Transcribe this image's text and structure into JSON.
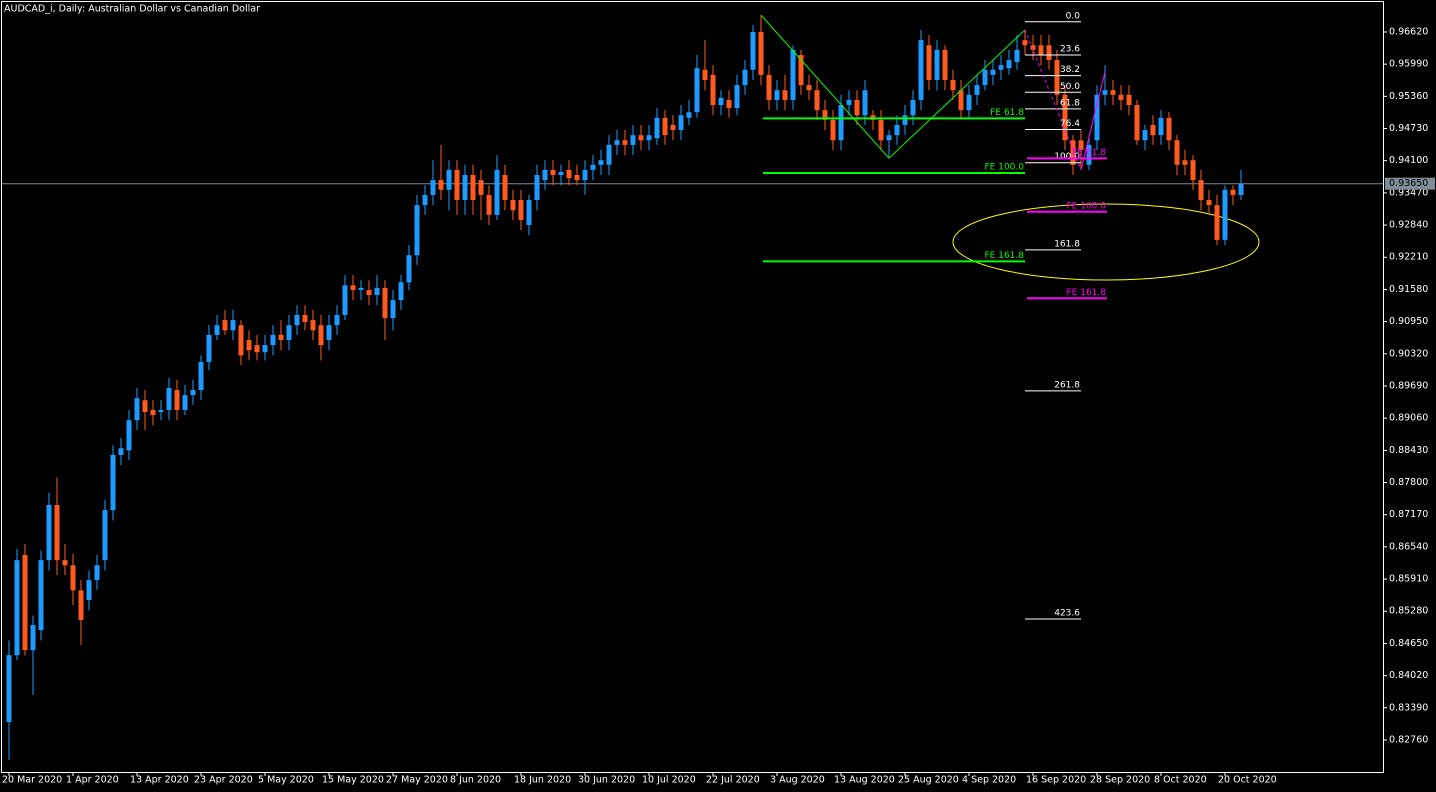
{
  "chart_data": {
    "type": "candlestick",
    "title": "AUDCAD_i, Daily:  Australian Dollar vs Canadian  Dollar",
    "up_color": "#1e9bff",
    "down_color": "#ff5a1f",
    "categories": [
      "20 Mar 2020",
      null,
      null,
      null,
      null,
      null,
      null,
      null,
      "1 Apr 2020",
      null,
      null,
      null,
      null,
      null,
      null,
      null,
      "13 Apr 2020",
      null,
      null,
      null,
      null,
      null,
      null,
      null,
      "23 Apr 2020",
      null,
      null,
      null,
      null,
      null,
      null,
      null,
      "5 May 2020",
      null,
      null,
      null,
      null,
      null,
      null,
      null,
      "15 May 2020",
      null,
      null,
      null,
      null,
      null,
      null,
      null,
      "27 May 2020",
      null,
      null,
      null,
      null,
      null,
      null,
      null,
      "8 Jun 2020",
      null,
      null,
      null,
      null,
      null,
      null,
      null,
      "18 Jun 2020",
      null,
      null,
      null,
      null,
      null,
      null,
      null,
      "30 Jun 2020",
      null,
      null,
      null,
      null,
      null,
      null,
      null,
      "10 Jul 2020",
      null,
      null,
      null,
      null,
      null,
      null,
      null,
      "22 Jul 2020",
      null,
      null,
      null,
      null,
      null,
      null,
      null,
      "3 Aug 2020",
      null,
      null,
      null,
      null,
      null,
      null,
      null,
      "13 Aug 2020",
      null,
      null,
      null,
      null,
      null,
      null,
      null,
      "25 Aug 2020",
      null,
      null,
      null,
      null,
      null,
      null,
      null,
      "4 Sep 2020",
      null,
      null,
      null,
      null,
      null,
      null,
      null,
      "16 Sep 2020",
      null,
      null,
      null,
      null,
      null,
      null,
      null,
      "28 Sep 2020",
      null,
      null,
      null,
      null,
      null,
      null,
      null,
      "8 Oct 2020",
      null,
      null,
      null,
      null,
      null,
      null,
      null,
      "20 Oct 2020",
      null,
      null
    ],
    "open": [
      0.8311,
      0.8442,
      0.8638,
      0.8452,
      0.8491,
      0.8628,
      0.8736,
      0.8628,
      0.8618,
      0.8569,
      0.855,
      0.8589,
      0.8628,
      0.8726,
      0.8834,
      0.8843,
      0.8902,
      0.8941,
      0.8922,
      0.8918,
      0.8922,
      0.8961,
      0.8922,
      0.8951,
      0.8961,
      0.9016,
      0.9069,
      0.9098,
      0.9078,
      0.9088,
      0.9059,
      0.9049,
      0.9035,
      0.9049,
      0.9069,
      0.9059,
      0.9088,
      0.9108,
      0.9098,
      0.9088,
      0.9059,
      0.9088,
      0.9108,
      0.9166,
      0.9157,
      0.9157,
      0.9147,
      0.9161,
      0.9102,
      0.9137,
      0.9172,
      0.9225,
      0.9323,
      0.9343,
      0.9372,
      0.9353,
      0.9392,
      0.9333,
      0.9382,
      0.9372,
      0.9343,
      0.9304,
      0.9382,
      0.9333,
      0.9333,
      0.9284,
      0.9333,
      0.9372,
      0.9392,
      0.9382,
      0.9392,
      0.9382,
      0.9372,
      0.9392,
      0.9402,
      0.9402,
      0.9441,
      0.945,
      0.9441,
      0.946,
      0.945,
      0.9454,
      0.9494,
      0.948,
      0.947,
      0.9494,
      0.9505,
      0.9588,
      0.9578,
      0.9519,
      0.9529,
      0.9513,
      0.9558,
      0.9588,
      0.9662,
      0.9578,
      0.9529,
      0.9548,
      0.9529,
      0.9617,
      0.9558,
      0.9548,
      0.9509,
      0.949,
      0.945,
      0.9519,
      0.9529,
      0.9499,
      0.9499,
      0.949,
      0.945,
      0.946,
      0.948,
      0.9499,
      0.9529,
      0.9636,
      0.9568,
      0.9627,
      0.9568,
      0.9548,
      0.9509,
      0.9539,
      0.9558,
      0.9578,
      0.9588,
      0.9591,
      0.9603,
      0.9646,
      0.9636,
      0.9636,
      0.9636,
      0.9607,
      0.9539,
      0.945,
      0.945,
      0.9402,
      0.945,
      0.9539,
      0.9548,
      0.9539,
      0.9539,
      0.9519,
      0.945,
      0.948,
      0.946,
      0.9494,
      0.945,
      0.9411,
      0.9411,
      0.9372,
      0.9333,
      0.9323,
      0.9255,
      0.9353,
      0.9343
    ],
    "high": [
      0.8471,
      0.865,
      0.866,
      0.852,
      0.8647,
      0.876,
      0.879,
      0.866,
      0.864,
      0.8589,
      0.8608,
      0.8638,
      0.8746,
      0.8853,
      0.8867,
      0.8922,
      0.8965,
      0.8961,
      0.8941,
      0.8941,
      0.8985,
      0.8981,
      0.8971,
      0.8981,
      0.9029,
      0.9088,
      0.9108,
      0.9118,
      0.9118,
      0.9098,
      0.9078,
      0.9069,
      0.9069,
      0.9088,
      0.9098,
      0.9108,
      0.9127,
      0.9127,
      0.9118,
      0.9108,
      0.9108,
      0.9127,
      0.9186,
      0.9186,
      0.9176,
      0.9176,
      0.9186,
      0.9176,
      0.9157,
      0.9186,
      0.9245,
      0.9343,
      0.9362,
      0.9411,
      0.9441,
      0.9411,
      0.9411,
      0.9402,
      0.9402,
      0.9392,
      0.9362,
      0.9421,
      0.9402,
      0.9353,
      0.9353,
      0.9343,
      0.9402,
      0.9411,
      0.9411,
      0.9402,
      0.9411,
      0.9402,
      0.9411,
      0.9421,
      0.9431,
      0.946,
      0.947,
      0.947,
      0.948,
      0.948,
      0.948,
      0.9513,
      0.9509,
      0.9499,
      0.9519,
      0.9529,
      0.9617,
      0.9646,
      0.9597,
      0.9548,
      0.9548,
      0.9578,
      0.9607,
      0.9676,
      0.9695,
      0.9597,
      0.9568,
      0.9578,
      0.9636,
      0.9627,
      0.9578,
      0.9568,
      0.9529,
      0.9509,
      0.9539,
      0.9548,
      0.9548,
      0.9568,
      0.9509,
      0.9509,
      0.947,
      0.9499,
      0.9519,
      0.9548,
      0.9666,
      0.9656,
      0.9646,
      0.9636,
      0.9588,
      0.9568,
      0.9558,
      0.9578,
      0.9607,
      0.9607,
      0.9617,
      0.9627,
      0.9656,
      0.9666,
      0.9656,
      0.9656,
      0.9656,
      0.9627,
      0.9558,
      0.946,
      0.947,
      0.946,
      0.9558,
      0.9597,
      0.9568,
      0.9558,
      0.9558,
      0.9529,
      0.948,
      0.9499,
      0.9509,
      0.9505,
      0.946,
      0.9431,
      0.9421,
      0.9392,
      0.9353,
      0.9343,
      0.9362,
      0.9362,
      0.9392
    ],
    "low": [
      0.8237,
      0.8432,
      0.8441,
      0.8364,
      0.8471,
      0.8608,
      0.8599,
      0.8599,
      0.854,
      0.8462,
      0.853,
      0.857,
      0.8608,
      0.8706,
      0.8814,
      0.8824,
      0.8883,
      0.8883,
      0.8892,
      0.8902,
      0.8902,
      0.8902,
      0.8912,
      0.8932,
      0.8941,
      0.9,
      0.9059,
      0.9069,
      0.9059,
      0.901,
      0.9019,
      0.9019,
      0.9019,
      0.9029,
      0.9039,
      0.9039,
      0.9069,
      0.9078,
      0.9059,
      0.9019,
      0.9039,
      0.9069,
      0.9098,
      0.9137,
      0.9137,
      0.9127,
      0.9127,
      0.9059,
      0.9078,
      0.9118,
      0.9157,
      0.9206,
      0.9304,
      0.9323,
      0.9333,
      0.9313,
      0.9304,
      0.9304,
      0.9304,
      0.9294,
      0.9284,
      0.9294,
      0.9313,
      0.9294,
      0.9274,
      0.9264,
      0.9313,
      0.9353,
      0.9362,
      0.9362,
      0.9362,
      0.9362,
      0.9343,
      0.9372,
      0.9382,
      0.9382,
      0.9421,
      0.9421,
      0.9421,
      0.9431,
      0.9431,
      0.9441,
      0.9441,
      0.945,
      0.945,
      0.948,
      0.9494,
      0.9548,
      0.9499,
      0.9499,
      0.9494,
      0.9499,
      0.9539,
      0.9568,
      0.9558,
      0.9509,
      0.9509,
      0.9509,
      0.9509,
      0.9539,
      0.9529,
      0.949,
      0.947,
      0.9431,
      0.9431,
      0.9499,
      0.948,
      0.948,
      0.947,
      0.9431,
      0.9415,
      0.9441,
      0.946,
      0.948,
      0.9509,
      0.9548,
      0.9548,
      0.9548,
      0.9529,
      0.949,
      0.9494,
      0.9519,
      0.9548,
      0.9558,
      0.9568,
      0.9578,
      0.9588,
      0.9617,
      0.9607,
      0.9597,
      0.9588,
      0.9519,
      0.9431,
      0.9382,
      0.9392,
      0.9392,
      0.9431,
      0.9519,
      0.9519,
      0.9509,
      0.9499,
      0.9441,
      0.9431,
      0.9441,
      0.9441,
      0.9431,
      0.9382,
      0.9382,
      0.9353,
      0.9313,
      0.9304,
      0.9245,
      0.9245,
      0.9323,
      0.9333
    ],
    "close": [
      0.8442,
      0.8628,
      0.8452,
      0.8501,
      0.8628,
      0.8736,
      0.8628,
      0.8618,
      0.8569,
      0.8511,
      0.8589,
      0.8618,
      0.8726,
      0.8834,
      0.8847,
      0.8902,
      0.8945,
      0.8918,
      0.8912,
      0.8922,
      0.8965,
      0.8922,
      0.8951,
      0.8961,
      0.9016,
      0.9069,
      0.9088,
      0.9078,
      0.9098,
      0.9029,
      0.9039,
      0.9035,
      0.9049,
      0.9069,
      0.9059,
      0.9088,
      0.9108,
      0.9094,
      0.9078,
      0.9049,
      0.9088,
      0.9108,
      0.9166,
      0.9157,
      0.9161,
      0.9147,
      0.9161,
      0.9102,
      0.9137,
      0.9172,
      0.9225,
      0.9323,
      0.9343,
      0.9372,
      0.9353,
      0.9392,
      0.9333,
      0.9382,
      0.9333,
      0.9343,
      0.9304,
      0.9392,
      0.9333,
      0.9313,
      0.9294,
      0.9333,
      0.9382,
      0.9392,
      0.9382,
      0.9388,
      0.9376,
      0.9372,
      0.9392,
      0.9402,
      0.9411,
      0.9441,
      0.945,
      0.9441,
      0.946,
      0.945,
      0.946,
      0.9494,
      0.946,
      0.947,
      0.9499,
      0.9505,
      0.9591,
      0.9568,
      0.9519,
      0.9533,
      0.9513,
      0.9558,
      0.9588,
      0.9662,
      0.9578,
      0.9529,
      0.9548,
      0.9529,
      0.9627,
      0.9558,
      0.9548,
      0.9509,
      0.949,
      0.945,
      0.9519,
      0.9529,
      0.9499,
      0.9548,
      0.949,
      0.945,
      0.946,
      0.948,
      0.9499,
      0.9529,
      0.9646,
      0.9568,
      0.9627,
      0.9568,
      0.9548,
      0.9509,
      0.9539,
      0.9558,
      0.9588,
      0.9588,
      0.9597,
      0.9607,
      0.9627,
      0.9636,
      0.9627,
      0.9617,
      0.9607,
      0.9539,
      0.945,
      0.9402,
      0.9431,
      0.9441,
      0.9539,
      0.9548,
      0.9539,
      0.9529,
      0.9519,
      0.945,
      0.947,
      0.946,
      0.9494,
      0.945,
      0.9402,
      0.9402,
      0.9372,
      0.9333,
      0.9323,
      0.9255,
      0.9353,
      0.9343,
      0.9365
    ],
    "ylim": [
      0.82133,
      0.97246
    ],
    "yticks": [
      {
        "value": 0.9662,
        "label": "0.96620"
      },
      {
        "value": 0.9599,
        "label": "0.95990"
      },
      {
        "value": 0.9536,
        "label": "0.95360"
      },
      {
        "value": 0.9473,
        "label": "0.94730"
      },
      {
        "value": 0.941,
        "label": "0.94100"
      },
      {
        "value": 0.9347,
        "label": "0.93470"
      },
      {
        "value": 0.9284,
        "label": "0.92840"
      },
      {
        "value": 0.9221,
        "label": "0.92210"
      },
      {
        "value": 0.9158,
        "label": "0.91580"
      },
      {
        "value": 0.9095,
        "label": "0.90950"
      },
      {
        "value": 0.9032,
        "label": "0.90320"
      },
      {
        "value": 0.8969,
        "label": "0.89690"
      },
      {
        "value": 0.8906,
        "label": "0.89060"
      },
      {
        "value": 0.8843,
        "label": "0.88430"
      },
      {
        "value": 0.878,
        "label": "0.87800"
      },
      {
        "value": 0.8717,
        "label": "0.87170"
      },
      {
        "value": 0.8654,
        "label": "0.86540"
      },
      {
        "value": 0.8591,
        "label": "0.85910"
      },
      {
        "value": 0.8528,
        "label": "0.85280"
      },
      {
        "value": 0.8465,
        "label": "0.84650"
      },
      {
        "value": 0.8402,
        "label": "0.84020"
      },
      {
        "value": 0.8339,
        "label": "0.83390"
      },
      {
        "value": 0.8276,
        "label": "0.82760"
      }
    ],
    "grid": false,
    "current_price": {
      "value": 0.9365,
      "label": "0.93650"
    },
    "fibonacci": {
      "color": "#ffffff",
      "points": [
        {
          "bar": 127,
          "price": 0.9682
        },
        {
          "bar": 134,
          "price": 0.9406
        }
      ],
      "levels": [
        {
          "value": 0,
          "label": "0.0"
        },
        23.6,
        38.2,
        {
          "value": 50,
          "label": "50.0"
        },
        61.8,
        76.4,
        {
          "value": 100,
          "label": "100.0"
        },
        161.8,
        261.8,
        423.6
      ]
    },
    "expansions": [
      {
        "color": "#00ff00",
        "points": [
          {
            "bar": 94,
            "price": 0.9695
          },
          {
            "bar": 110,
            "price": 0.9415
          },
          {
            "bar": 127,
            "price": 0.9666
          }
        ],
        "levels": [
          {
            "value": 61.8,
            "label": "FE 61.8"
          },
          {
            "value": 100,
            "label": "FE 100.0"
          },
          {
            "value": 161.8,
            "label": "FE 161.8"
          }
        ]
      },
      {
        "color": "#ff00ff",
        "points": [
          {
            "bar": 127,
            "price": 0.9666
          },
          {
            "bar": 134,
            "price": 0.9392
          },
          {
            "bar": 137,
            "price": 0.9584
          }
        ],
        "levels": [
          {
            "value": 61.8,
            "label": "FE 61.8"
          },
          {
            "value": 100,
            "label": "FE 100.0"
          },
          {
            "value": 161.8,
            "label": "FE 161.8"
          }
        ]
      }
    ]
  }
}
